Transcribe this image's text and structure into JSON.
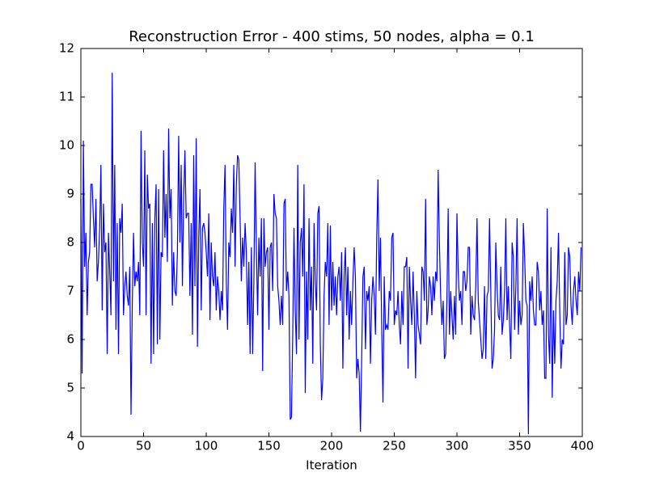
{
  "chart_data": {
    "type": "line",
    "title": "Reconstruction Error - 400 stims, 50 nodes, alpha = 0.1",
    "x_label": "Iteration",
    "color": "#0000ff",
    "xlim": [
      0,
      400
    ],
    "xticks": [
      0,
      50,
      100,
      150,
      200,
      250,
      300,
      350,
      400
    ],
    "ylim": [
      4,
      12
    ],
    "yticks": [
      4,
      5,
      6,
      7,
      8,
      9,
      10,
      11,
      12
    ],
    "x": [
      0,
      1,
      2,
      3,
      4,
      5,
      6,
      7,
      8,
      9,
      10,
      11,
      12,
      13,
      14,
      15,
      16,
      17,
      18,
      19,
      20,
      21,
      22,
      23,
      24,
      25,
      26,
      27,
      28,
      29,
      30,
      31,
      32,
      33,
      34,
      35,
      36,
      37,
      38,
      39,
      40,
      41,
      42,
      43,
      44,
      45,
      46,
      47,
      48,
      49,
      50,
      51,
      52,
      53,
      54,
      55,
      56,
      57,
      58,
      59,
      60,
      61,
      62,
      63,
      64,
      65,
      66,
      67,
      68,
      69,
      70,
      71,
      72,
      73,
      74,
      75,
      76,
      77,
      78,
      79,
      80,
      81,
      82,
      83,
      84,
      85,
      86,
      87,
      88,
      89,
      90,
      91,
      92,
      93,
      94,
      95,
      96,
      97,
      98,
      99,
      100,
      101,
      102,
      103,
      104,
      105,
      106,
      107,
      108,
      109,
      110,
      111,
      112,
      113,
      114,
      115,
      116,
      117,
      118,
      119,
      120,
      121,
      122,
      123,
      124,
      125,
      126,
      127,
      128,
      129,
      130,
      131,
      132,
      133,
      134,
      135,
      136,
      137,
      138,
      139,
      140,
      141,
      142,
      143,
      144,
      145,
      146,
      147,
      148,
      149,
      150,
      151,
      152,
      153,
      154,
      155,
      156,
      157,
      158,
      159,
      160,
      161,
      162,
      163,
      164,
      165,
      166,
      167,
      168,
      169,
      170,
      171,
      172,
      173,
      174,
      175,
      176,
      177,
      178,
      179,
      180,
      181,
      182,
      183,
      184,
      185,
      186,
      187,
      188,
      189,
      190,
      191,
      192,
      193,
      194,
      195,
      196,
      197,
      198,
      199,
      200,
      201,
      202,
      203,
      204,
      205,
      206,
      207,
      208,
      209,
      210,
      211,
      212,
      213,
      214,
      215,
      216,
      217,
      218,
      219,
      220,
      221,
      222,
      223,
      224,
      225,
      226,
      227,
      228,
      229,
      230,
      231,
      232,
      233,
      234,
      235,
      236,
      237,
      238,
      239,
      240,
      241,
      242,
      243,
      244,
      245,
      246,
      247,
      248,
      249,
      250,
      251,
      252,
      253,
      254,
      255,
      256,
      257,
      258,
      259,
      260,
      261,
      262,
      263,
      264,
      265,
      266,
      267,
      268,
      269,
      270,
      271,
      272,
      273,
      274,
      275,
      276,
      277,
      278,
      279,
      280,
      281,
      282,
      283,
      284,
      285,
      286,
      287,
      288,
      289,
      290,
      291,
      292,
      293,
      294,
      295,
      296,
      297,
      298,
      299,
      300,
      301,
      302,
      303,
      304,
      305,
      306,
      307,
      308,
      309,
      310,
      311,
      312,
      313,
      314,
      315,
      316,
      317,
      318,
      319,
      320,
      321,
      322,
      323,
      324,
      325,
      326,
      327,
      328,
      329,
      330,
      331,
      332,
      333,
      334,
      335,
      336,
      337,
      338,
      339,
      340,
      341,
      342,
      343,
      344,
      345,
      346,
      347,
      348,
      349,
      350,
      351,
      352,
      353,
      354,
      355,
      356,
      357,
      358,
      359,
      360,
      361,
      362,
      363,
      364,
      365,
      366,
      367,
      368,
      369,
      370,
      371,
      372,
      373,
      374,
      375,
      376,
      377,
      378,
      379,
      380,
      381,
      382,
      383,
      384,
      385,
      386,
      387,
      388,
      389,
      390,
      391,
      392,
      393,
      394,
      395,
      396,
      397,
      398,
      399
    ],
    "values": [
      8.9,
      5.3,
      10.1,
      7.5,
      8.2,
      6.5,
      7.6,
      7.8,
      9.2,
      9.2,
      8.5,
      7.9,
      8.9,
      7.2,
      7.6,
      8.3,
      9.6,
      6.6,
      8.8,
      7.8,
      8.0,
      5.7,
      8.2,
      7.4,
      6.5,
      11.5,
      7.2,
      9.6,
      6.2,
      8.4,
      5.7,
      8.5,
      8.2,
      8.8,
      6.5,
      7.1,
      7.4,
      6.9,
      6.7,
      7.5,
      4.45,
      6.7,
      8.2,
      7.1,
      7.4,
      7.2,
      7.6,
      6.5,
      10.3,
      8.0,
      7.5,
      9.9,
      6.5,
      9.4,
      8.7,
      8.8,
      5.5,
      8.4,
      5.7,
      8.5,
      9.2,
      5.9,
      9.1,
      6.0,
      7.8,
      7.7,
      9.9,
      8.1,
      9.0,
      7.6,
      10.35,
      8.5,
      9.1,
      6.7,
      7.8,
      7.0,
      6.9,
      7.8,
      10.2,
      8.0,
      9.6,
      7.1,
      8.9,
      9.9,
      8.5,
      8.6,
      8.6,
      6.9,
      8.4,
      6.1,
      9.8,
      7.1,
      10.15,
      5.85,
      8.1,
      9.1,
      6.6,
      8.3,
      8.4,
      8.2,
      7.8,
      7.3,
      8.6,
      6.4,
      8.0,
      7.3,
      7.1,
      7.8,
      6.6,
      7.3,
      7.0,
      6.4,
      7.0,
      6.6,
      8.7,
      9.6,
      7.2,
      6.2,
      8.0,
      7.7,
      8.7,
      8.2,
      9.6,
      7.5,
      9.2,
      9.8,
      9.7,
      8.5,
      7.2,
      8.1,
      7.5,
      8.4,
      7.8,
      6.3,
      7.6,
      5.7,
      7.9,
      5.7,
      7.2,
      9.65,
      7.9,
      6.5,
      8.1,
      7.3,
      8.5,
      5.35,
      8.5,
      7.5,
      7.8,
      7.9,
      6.2,
      7.9,
      8.0,
      7.0,
      9.0,
      8.6,
      8.5,
      7.1,
      6.8,
      6.3,
      6.9,
      6.3,
      8.8,
      8.9,
      7.0,
      7.4,
      6.9,
      4.35,
      4.4,
      6.1,
      8.3,
      6.6,
      5.7,
      9.6,
      6.0,
      8.0,
      8.3,
      7.3,
      9.2,
      4.9,
      7.4,
      6.0,
      8.5,
      6.6,
      7.5,
      5.5,
      8.4,
      7.2,
      6.6,
      8.6,
      8.75,
      5.9,
      4.75,
      5.2,
      6.9,
      7.6,
      7.3,
      8.4,
      6.3,
      8.35,
      6.6,
      7.6,
      6.7,
      7.3,
      6.5,
      7.3,
      7.5,
      6.8,
      7.8,
      5.4,
      7.3,
      7.9,
      6.5,
      7.5,
      6.0,
      7.0,
      6.3,
      7.2,
      7.9,
      7.3,
      5.2,
      5.6,
      5.3,
      4.1,
      5.6,
      7.3,
      7.5,
      5.8,
      7.0,
      6.8,
      7.1,
      5.5,
      6.8,
      7.3,
      6.9,
      6.1,
      8.1,
      9.3,
      7.0,
      8.1,
      6.2,
      4.7,
      7.3,
      6.2,
      6.3,
      6.2,
      7.0,
      6.8,
      8.1,
      8.2,
      6.3,
      6.6,
      6.5,
      7.0,
      6.3,
      5.9,
      7.0,
      6.3,
      7.5,
      7.5,
      7.7,
      5.4,
      7.5,
      6.8,
      6.3,
      7.4,
      6.5,
      5.2,
      7.0,
      6.3,
      6.1,
      5.9,
      7.5,
      7.4,
      6.8,
      8.9,
      6.3,
      6.6,
      7.3,
      7.1,
      6.5,
      7.3,
      6.8,
      7.4,
      7.2,
      9.5,
      8.0,
      6.9,
      6.3,
      6.8,
      5.6,
      5.7,
      6.8,
      8.7,
      6.1,
      7.0,
      6.5,
      6.0,
      6.9,
      6.1,
      8.6,
      7.4,
      6.8,
      7.0,
      6.3,
      7.4,
      7.4,
      7.0,
      7.2,
      7.9,
      7.9,
      6.1,
      6.9,
      6.5,
      6.4,
      7.1,
      8.5,
      6.8,
      6.4,
      6.0,
      5.6,
      5.8,
      7.1,
      5.6,
      6.9,
      7.0,
      8.5,
      7.0,
      5.4,
      5.6,
      6.2,
      8.0,
      7.1,
      6.5,
      6.4,
      7.5,
      6.1,
      6.4,
      7.0,
      8.5,
      6.4,
      7.1,
      6.3,
      5.6,
      8.0,
      7.7,
      6.2,
      7.1,
      8.5,
      6.1,
      6.8,
      6.3,
      6.5,
      8.4,
      7.7,
      6.8,
      6.7,
      4.05,
      7.2,
      6.8,
      7.3,
      6.6,
      6.3,
      6.3,
      7.6,
      7.4,
      6.6,
      7.0,
      6.3,
      6.6,
      5.2,
      5.2,
      8.7,
      6.1,
      5.5,
      7.9,
      4.8,
      6.6,
      5.5,
      6.8,
      7.2,
      8.2,
      6.6,
      5.4,
      6.0,
      5.9,
      7.8,
      6.3,
      6.5,
      7.9,
      7.7,
      6.7,
      6.3,
      7.0,
      7.3,
      6.8,
      6.5,
      7.4,
      7.0,
      7.9
    ]
  }
}
